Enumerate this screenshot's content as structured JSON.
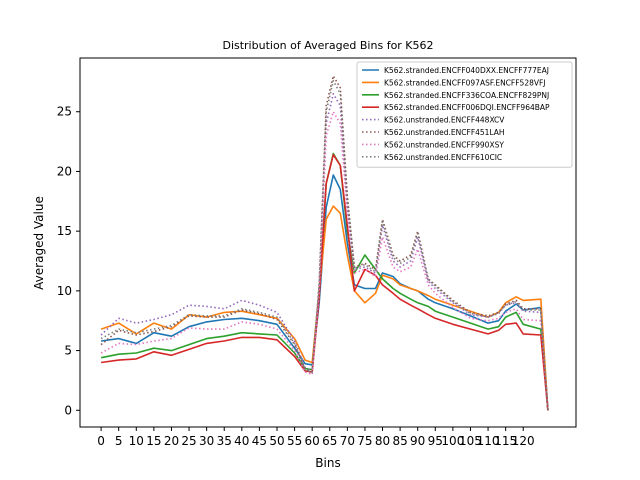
{
  "chart_data": {
    "type": "line",
    "title": "Distribution of Averaged Bins for K562",
    "xlabel": "Bins",
    "ylabel": "Averaged Value",
    "xlim": [
      -6,
      135
    ],
    "ylim": [
      -1.4,
      29.5
    ],
    "xticks": [
      0,
      5,
      10,
      15,
      20,
      25,
      30,
      35,
      40,
      45,
      50,
      55,
      60,
      65,
      70,
      75,
      80,
      85,
      90,
      95,
      100,
      105,
      110,
      115,
      120
    ],
    "yticks": [
      0,
      5,
      10,
      15,
      20,
      25
    ],
    "grid": false,
    "legend_position": "top-right",
    "x": [
      0,
      5,
      10,
      15,
      20,
      25,
      30,
      35,
      40,
      45,
      50,
      55,
      58,
      60,
      62,
      64,
      66,
      68,
      70,
      72,
      75,
      78,
      80,
      83,
      85,
      88,
      90,
      93,
      95,
      100,
      105,
      110,
      113,
      115,
      118,
      120,
      125,
      127
    ],
    "series": [
      {
        "name": "K562.stranded.ENCFF040DXX.ENCFF777EAJ",
        "color": "#1f77b4",
        "dash": "solid",
        "values": [
          5.8,
          6.0,
          5.6,
          6.5,
          6.2,
          7.0,
          7.4,
          7.6,
          7.7,
          7.5,
          7.2,
          5.2,
          3.9,
          3.8,
          9.0,
          17.0,
          19.7,
          18.5,
          14.0,
          10.5,
          10.2,
          10.2,
          11.5,
          11.2,
          10.6,
          10.2,
          10.0,
          9.3,
          9.0,
          8.5,
          7.9,
          7.3,
          7.5,
          8.3,
          8.9,
          8.4,
          8.6,
          0.0
        ]
      },
      {
        "name": "K562.stranded.ENCFF097ASF.ENCFF528VFJ",
        "color": "#ff7f0e",
        "dash": "solid",
        "values": [
          6.8,
          7.3,
          6.4,
          7.3,
          6.8,
          8.0,
          7.8,
          8.2,
          8.3,
          8.0,
          7.7,
          6.0,
          4.2,
          4.0,
          10.0,
          16.0,
          17.1,
          16.5,
          13.0,
          10.0,
          9.0,
          9.8,
          11.3,
          11.0,
          10.5,
          10.2,
          10.0,
          9.6,
          9.3,
          8.8,
          8.3,
          7.8,
          8.2,
          9.0,
          9.5,
          9.2,
          9.3,
          0.0
        ]
      },
      {
        "name": "K562.stranded.ENCFF336COA.ENCFF829PNJ",
        "color": "#2ca02c",
        "dash": "solid",
        "values": [
          4.4,
          4.7,
          4.8,
          5.2,
          5.0,
          5.5,
          6.0,
          6.2,
          6.5,
          6.4,
          6.3,
          4.8,
          3.5,
          3.4,
          10.0,
          19.0,
          21.5,
          20.5,
          15.0,
          11.5,
          13.0,
          11.8,
          11.0,
          10.2,
          9.8,
          9.3,
          9.0,
          8.7,
          8.3,
          7.8,
          7.3,
          6.8,
          7.0,
          7.8,
          8.2,
          7.2,
          6.8,
          0.0
        ]
      },
      {
        "name": "K562.stranded.ENCFF006DQI.ENCFF964BAP",
        "color": "#d62728",
        "dash": "solid",
        "values": [
          4.0,
          4.2,
          4.3,
          4.9,
          4.6,
          5.1,
          5.6,
          5.8,
          6.1,
          6.1,
          5.9,
          4.5,
          3.3,
          3.2,
          9.5,
          19.0,
          21.4,
          20.5,
          15.5,
          10.0,
          11.8,
          11.3,
          10.5,
          9.8,
          9.3,
          8.8,
          8.5,
          8.0,
          7.7,
          7.2,
          6.8,
          6.4,
          6.7,
          7.2,
          7.3,
          6.4,
          6.3,
          0.0
        ]
      },
      {
        "name": "K562.unstranded.ENCFF448XCV",
        "color": "#9467bd",
        "dash": "dotted",
        "values": [
          6.3,
          7.7,
          7.3,
          7.6,
          8.0,
          8.8,
          8.7,
          8.5,
          9.2,
          8.8,
          8.2,
          5.8,
          3.6,
          3.2,
          10.5,
          24.0,
          26.5,
          25.5,
          17.0,
          11.8,
          12.0,
          11.5,
          15.5,
          12.5,
          12.0,
          12.5,
          14.5,
          10.8,
          10.2,
          9.0,
          8.0,
          7.8,
          8.2,
          8.8,
          9.0,
          8.3,
          8.2,
          0.0
        ]
      },
      {
        "name": "K562.unstranded.ENCFF451LAH",
        "color": "#8c564b",
        "dash": "dotted",
        "values": [
          5.5,
          6.7,
          6.3,
          6.6,
          7.0,
          7.9,
          7.8,
          7.8,
          8.4,
          8.1,
          7.6,
          5.5,
          3.4,
          3.2,
          10.5,
          25.5,
          28.0,
          27.0,
          18.0,
          12.0,
          12.3,
          11.8,
          16.0,
          13.0,
          12.5,
          13.0,
          15.0,
          11.0,
          10.5,
          9.2,
          8.2,
          7.9,
          8.2,
          8.9,
          9.2,
          8.5,
          8.5,
          0.0
        ]
      },
      {
        "name": "K562.unstranded.ENCFF990XSY",
        "color": "#e377c2",
        "dash": "dotted",
        "values": [
          4.8,
          5.6,
          5.5,
          5.8,
          6.0,
          6.9,
          6.8,
          6.8,
          7.4,
          7.2,
          6.8,
          5.0,
          3.2,
          3.0,
          10.0,
          23.0,
          25.0,
          24.0,
          16.5,
          11.5,
          11.8,
          11.2,
          14.5,
          12.0,
          11.6,
          12.0,
          13.5,
          10.5,
          9.8,
          8.6,
          7.7,
          7.5,
          7.7,
          8.2,
          8.5,
          7.6,
          7.5,
          0.0
        ]
      },
      {
        "name": "K562.unstranded.ENCFF610CIC",
        "color": "#7f7f7f",
        "dash": "dotted",
        "values": [
          6.0,
          6.8,
          6.5,
          6.8,
          7.1,
          8.0,
          7.9,
          7.9,
          8.5,
          8.2,
          7.8,
          5.6,
          3.4,
          3.2,
          10.5,
          25.0,
          27.6,
          26.5,
          17.8,
          11.9,
          12.2,
          11.6,
          15.8,
          12.8,
          12.3,
          12.8,
          14.8,
          10.9,
          10.4,
          9.1,
          8.1,
          7.8,
          8.1,
          8.8,
          9.1,
          8.4,
          8.4,
          0.0
        ]
      }
    ]
  }
}
